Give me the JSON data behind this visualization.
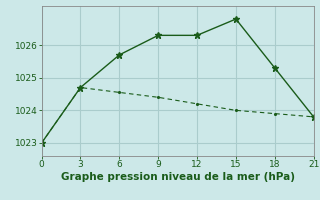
{
  "line1_x": [
    0,
    3,
    6,
    9,
    12,
    15,
    18,
    21
  ],
  "line1_y": [
    1023.0,
    1024.7,
    1025.7,
    1026.3,
    1026.3,
    1026.8,
    1025.3,
    1023.8
  ],
  "line2_x": [
    0,
    3,
    6,
    9,
    12,
    15,
    18,
    21
  ],
  "line2_y": [
    1023.0,
    1024.7,
    1024.55,
    1024.4,
    1024.2,
    1024.0,
    1023.9,
    1023.8
  ],
  "line_color": "#1a5c1a",
  "bg_color": "#cce8e8",
  "grid_color": "#aacccc",
  "xlabel": "Graphe pression niveau de la mer (hPa)",
  "xticks": [
    0,
    3,
    6,
    9,
    12,
    15,
    18,
    21
  ],
  "yticks": [
    1023,
    1024,
    1025,
    1026
  ],
  "xlim": [
    0,
    21
  ],
  "ylim": [
    1022.6,
    1027.2
  ],
  "xlabel_color": "#1a5c1a",
  "xlabel_fontsize": 7.5
}
